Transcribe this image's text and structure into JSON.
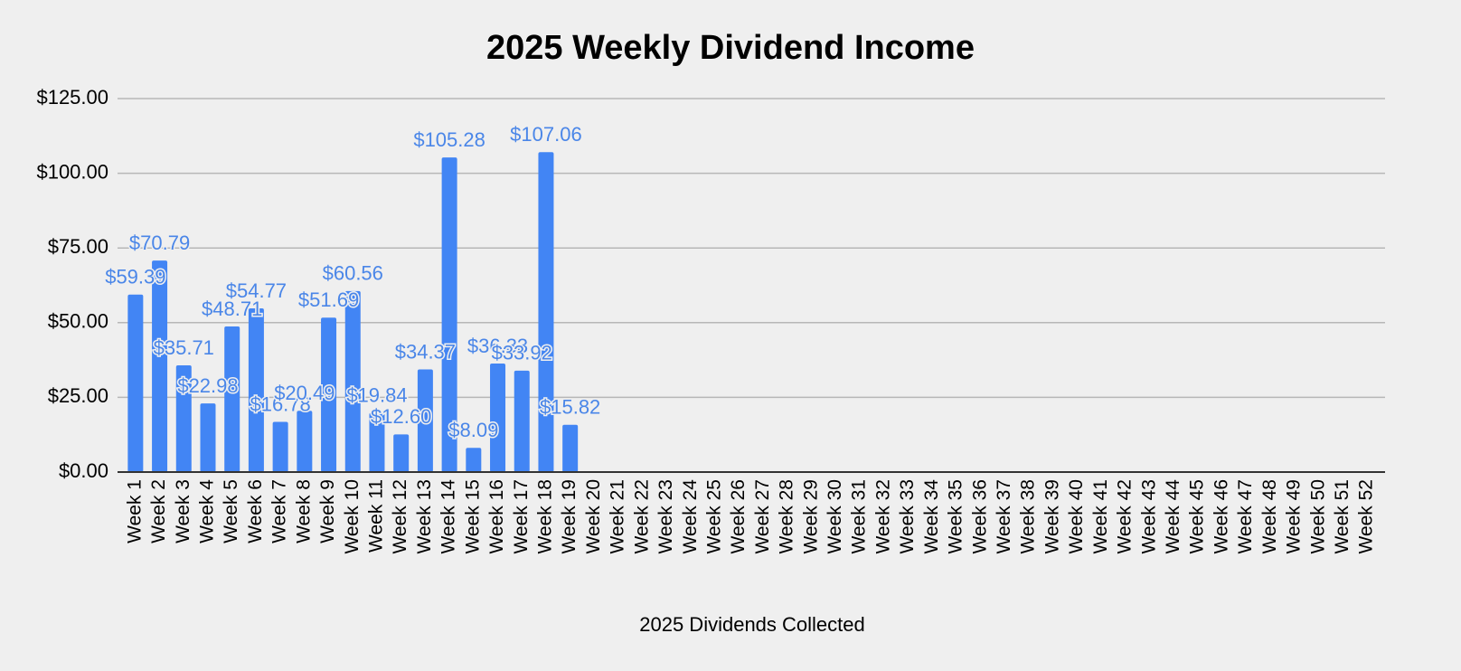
{
  "chart_data": {
    "type": "bar",
    "title": "2025 Weekly Dividend Income",
    "x_label": "2025 Dividends Collected",
    "categories": [
      "Week 1",
      "Week 2",
      "Week 3",
      "Week 4",
      "Week 5",
      "Week 6",
      "Week 7",
      "Week 8",
      "Week 9",
      "Week 10",
      "Week 11",
      "Week 12",
      "Week 13",
      "Week 14",
      "Week 15",
      "Week 16",
      "Week 17",
      "Week 18",
      "Week 19",
      "Week 20",
      "Week 21",
      "Week 22",
      "Week 23",
      "Week 24",
      "Week 25",
      "Week 26",
      "Week 27",
      "Week 28",
      "Week 29",
      "Week 30",
      "Week 31",
      "Week 32",
      "Week 33",
      "Week 34",
      "Week 35",
      "Week 36",
      "Week 37",
      "Week 38",
      "Week 39",
      "Week 40",
      "Week 41",
      "Week 42",
      "Week 43",
      "Week 44",
      "Week 45",
      "Week 46",
      "Week 47",
      "Week 48",
      "Week 49",
      "Week 50",
      "Week 51",
      "Week 52"
    ],
    "values": [
      59.39,
      70.79,
      35.71,
      22.98,
      48.71,
      54.77,
      16.78,
      20.49,
      51.69,
      60.56,
      19.84,
      12.6,
      34.37,
      105.28,
      8.09,
      36.33,
      33.92,
      107.06,
      15.82,
      null,
      null,
      null,
      null,
      null,
      null,
      null,
      null,
      null,
      null,
      null,
      null,
      null,
      null,
      null,
      null,
      null,
      null,
      null,
      null,
      null,
      null,
      null,
      null,
      null,
      null,
      null,
      null,
      null,
      null,
      null,
      null,
      null
    ],
    "value_labels": [
      "$59.39",
      "$70.79",
      "$35.71",
      "$22.98",
      "$48.71",
      "$54.77",
      "$16.78",
      "$20.49",
      "$51.69",
      "$60.56",
      "$19.84",
      "$12.60",
      "$34.37",
      "$105.28",
      "$8.09",
      "$36.33",
      "$33.92",
      "$107.06",
      "$15.82",
      null,
      null,
      null,
      null,
      null,
      null,
      null,
      null,
      null,
      null,
      null,
      null,
      null,
      null,
      null,
      null,
      null,
      null,
      null,
      null,
      null,
      null,
      null,
      null,
      null,
      null,
      null,
      null,
      null,
      null,
      null,
      null,
      null
    ],
    "color": "#4285f4",
    "ylim": [
      0,
      125
    ],
    "yticks": [
      {
        "value": 0,
        "label": "$0.00"
      },
      {
        "value": 25,
        "label": "$25.00"
      },
      {
        "value": 50,
        "label": "$50.00"
      },
      {
        "value": 75,
        "label": "$75.00"
      },
      {
        "value": 100,
        "label": "$100.00"
      },
      {
        "value": 125,
        "label": "$125.00"
      }
    ],
    "grid": true
  }
}
